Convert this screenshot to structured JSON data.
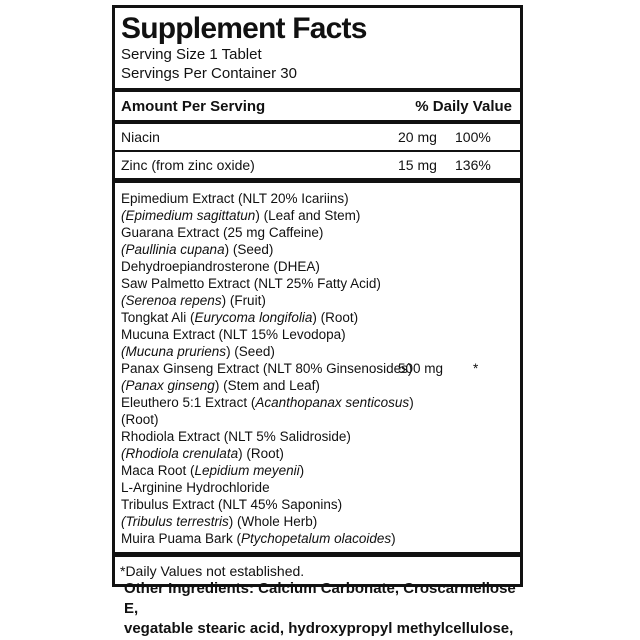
{
  "ink_color": "#111111",
  "label": {
    "title": "Supplement Facts",
    "serving_size": "Serving Size 1 Tablet",
    "servings_per_container": "Servings Per Container 30",
    "columns": {
      "amount_header": "Amount Per Serving",
      "dv_header": "% Daily Value"
    },
    "nutrients": [
      {
        "name": "Niacin",
        "amount": "20 mg",
        "dv": "100%"
      },
      {
        "name": "Zinc (from zinc oxide)",
        "amount": "15 mg",
        "dv": "136%"
      }
    ],
    "blend": {
      "amount": "500 mg",
      "dv": "*",
      "amount_line_index": 10,
      "lines": [
        [
          {
            "t": "Epimedium Extract (NLT 20% Icariins)"
          }
        ],
        [
          {
            "t": "(",
            "i": true
          },
          {
            "t": "Epimedium sagittatun",
            "i": true
          },
          {
            "t": ") (Leaf and Stem)"
          }
        ],
        [
          {
            "t": "Guarana Extract (25 mg Caffeine)"
          }
        ],
        [
          {
            "t": "(",
            "i": true
          },
          {
            "t": "Paullinia cupana",
            "i": true
          },
          {
            "t": ")  (Seed)"
          }
        ],
        [
          {
            "t": "Dehydroepiandrosterone (DHEA)"
          }
        ],
        [
          {
            "t": "Saw Palmetto Extract (NLT 25% Fatty Acid)"
          }
        ],
        [
          {
            "t": "(",
            "i": true
          },
          {
            "t": "Serenoa repens",
            "i": true
          },
          {
            "t": ") (Fruit)"
          }
        ],
        [
          {
            "t": "Tongkat Ali ("
          },
          {
            "t": "Eurycoma longifolia",
            "i": true
          },
          {
            "t": ") (Root)"
          }
        ],
        [
          {
            "t": "Mucuna Extract (NLT 15% Levodopa)"
          }
        ],
        [
          {
            "t": "(",
            "i": true
          },
          {
            "t": "Mucuna pruriens",
            "i": true
          },
          {
            "t": ") (Seed)"
          }
        ],
        [
          {
            "t": "Panax Ginseng Extract (NLT 80% Ginsenosides)"
          }
        ],
        [
          {
            "t": "(",
            "i": true
          },
          {
            "t": "Panax ginseng",
            "i": true
          },
          {
            "t": ") (Stem and Leaf)"
          }
        ],
        [
          {
            "t": "Eleuthero 5:1 Extract ("
          },
          {
            "t": "Acanthopanax senticosus",
            "i": true
          },
          {
            "t": ")"
          }
        ],
        [
          {
            "t": "(Root)"
          }
        ],
        [
          {
            "t": "Rhodiola Extract (NLT 5% Salidroside)"
          }
        ],
        [
          {
            "t": "(",
            "i": true
          },
          {
            "t": "Rhodiola crenulata",
            "i": true
          },
          {
            "t": ") (Root)"
          }
        ],
        [
          {
            "t": "Maca Root ("
          },
          {
            "t": "Lepidium meyenii",
            "i": true
          },
          {
            "t": ")"
          }
        ],
        [
          {
            "t": "L-Arginine Hydrochloride"
          }
        ],
        [
          {
            "t": "Tribulus Extract (NLT 45% Saponins)"
          }
        ],
        [
          {
            "t": "(",
            "i": true
          },
          {
            "t": "Tribulus terrestris",
            "i": true
          },
          {
            "t": ") (Whole Herb)"
          }
        ],
        [
          {
            "t": "Muira Puama Bark ("
          },
          {
            "t": "Ptychopetalum olacoides",
            "i": true
          },
          {
            "t": ")"
          }
        ]
      ]
    },
    "footnote": "*Daily Values not established.",
    "other_ingredients": "Other Ingredients: Calcium Carbonate, Croscarmellose E,\nvegatable stearic acid, hydroxypropyl methylcellulose,\nvegatable magnesium stearate and silicon dioxide"
  }
}
